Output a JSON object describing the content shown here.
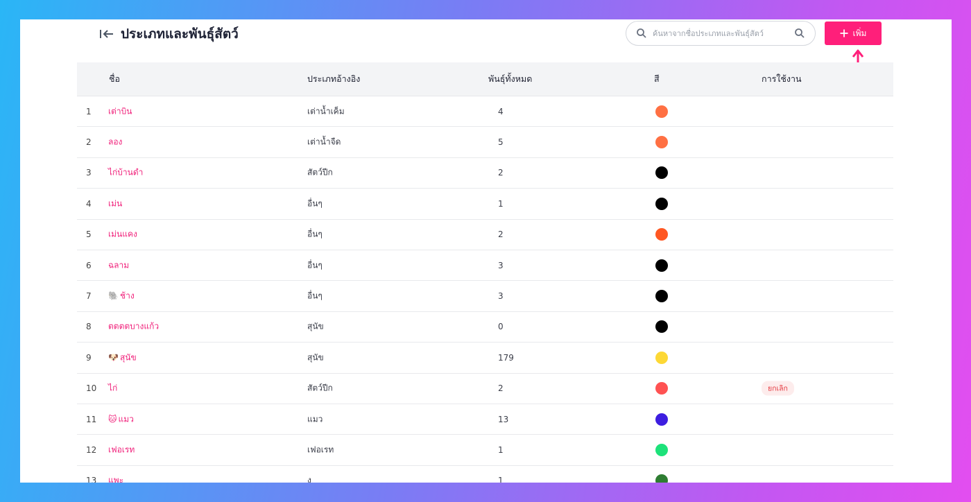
{
  "header": {
    "title": "ประเภทและพันธุ์สัตว์",
    "search_placeholder": "ค้นหาจากชื่อประเภทและพันธุ์สัตว์",
    "add_label": "เพิ่ม"
  },
  "table": {
    "columns": [
      "ชื่อ",
      "ประเภทอ้างอิง",
      "พันธุ์ทั้งหมด",
      "สี",
      "การใช้งาน"
    ],
    "rows": [
      {
        "num": "1",
        "emoji": "",
        "name": "เต่าบิน",
        "ref": "เต่าน้ำเค็ม",
        "count": "4",
        "color": "#ff7043",
        "status": ""
      },
      {
        "num": "2",
        "emoji": "",
        "name": "ลอง",
        "ref": "เต่าน้ำจืด",
        "count": "5",
        "color": "#ff7043",
        "status": ""
      },
      {
        "num": "3",
        "emoji": "",
        "name": "ไก่บ้านดำ",
        "ref": "สัตว์ปีก",
        "count": "2",
        "color": "#000000",
        "status": ""
      },
      {
        "num": "4",
        "emoji": "",
        "name": "เม่น",
        "ref": "อื่นๆ",
        "count": "1",
        "color": "#000000",
        "status": ""
      },
      {
        "num": "5",
        "emoji": "",
        "name": "เม่นแคง",
        "ref": "อื่นๆ",
        "count": "2",
        "color": "#ff5722",
        "status": ""
      },
      {
        "num": "6",
        "emoji": "",
        "name": "ฉลาม",
        "ref": "อื่นๆ",
        "count": "3",
        "color": "#000000",
        "status": ""
      },
      {
        "num": "7",
        "emoji": "🐘",
        "name": "ช้าง",
        "ref": "อื่นๆ",
        "count": "3",
        "color": "#000000",
        "status": ""
      },
      {
        "num": "8",
        "emoji": "",
        "name": "ตตตตบางแก้ว",
        "ref": "สุนัข",
        "count": "0",
        "color": "#000000",
        "status": ""
      },
      {
        "num": "9",
        "emoji": "🐶",
        "name": "สุนัข",
        "ref": "สุนัข",
        "count": "179",
        "color": "#fdd835",
        "status": ""
      },
      {
        "num": "10",
        "emoji": "",
        "name": "ไก่",
        "ref": "สัตว์ปีก",
        "count": "2",
        "color": "#ff5252",
        "status": "ยกเลิก"
      },
      {
        "num": "11",
        "emoji": "🐱",
        "name": "แมว",
        "ref": "แมว",
        "count": "13",
        "color": "#3d1ee0",
        "status": ""
      },
      {
        "num": "12",
        "emoji": "",
        "name": "เฟอเรท",
        "ref": "เฟอเรท",
        "count": "1",
        "color": "#1de27a",
        "status": ""
      },
      {
        "num": "13",
        "emoji": "",
        "name": "แพะ",
        "ref": "ง",
        "count": "1",
        "color": "#2e7d32",
        "status": ""
      }
    ]
  },
  "colors": {
    "accent": "#ff1f7a",
    "header_bg": "#f3f4f6"
  }
}
